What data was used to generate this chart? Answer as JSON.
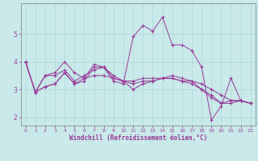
{
  "xlabel": "Windchill (Refroidissement éolien,°C)",
  "line_color": "#993399",
  "bg_color": "#c8eaea",
  "grid_color": "#aad8d8",
  "series": [
    [
      4.0,
      2.9,
      3.1,
      3.2,
      3.6,
      3.2,
      3.4,
      3.5,
      3.5,
      3.4,
      3.3,
      3.2,
      3.3,
      3.3,
      3.4,
      3.4,
      3.3,
      3.3,
      3.2,
      3.0,
      2.8,
      2.6,
      2.6,
      2.5
    ],
    [
      4.0,
      2.9,
      3.5,
      3.6,
      4.0,
      3.6,
      3.4,
      3.9,
      3.8,
      3.5,
      3.3,
      3.0,
      3.2,
      3.3,
      3.4,
      3.5,
      3.4,
      3.3,
      3.0,
      2.8,
      2.5,
      2.5,
      2.6,
      2.5
    ],
    [
      4.0,
      2.9,
      3.5,
      3.5,
      3.7,
      3.3,
      3.5,
      3.7,
      3.8,
      3.3,
      3.2,
      4.9,
      5.3,
      5.1,
      5.6,
      4.6,
      4.6,
      4.4,
      3.8,
      1.9,
      2.4,
      3.4,
      2.6,
      2.5
    ],
    [
      4.0,
      2.9,
      3.1,
      3.2,
      3.6,
      3.2,
      3.3,
      3.8,
      3.8,
      3.4,
      3.3,
      3.3,
      3.4,
      3.4,
      3.4,
      3.4,
      3.3,
      3.2,
      3.0,
      2.7,
      2.5,
      2.6,
      2.6,
      2.5
    ]
  ],
  "ylim": [
    1.7,
    6.1
  ],
  "xlim": [
    -0.5,
    23.5
  ],
  "yticks": [
    2,
    3,
    4,
    5
  ],
  "xticks": [
    0,
    1,
    2,
    3,
    4,
    5,
    6,
    7,
    8,
    9,
    10,
    11,
    12,
    13,
    14,
    15,
    16,
    17,
    18,
    19,
    20,
    21,
    22,
    23
  ]
}
